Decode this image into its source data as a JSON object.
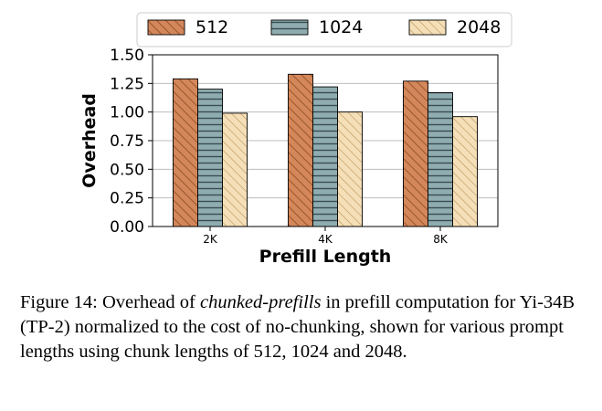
{
  "chart_data": {
    "type": "bar",
    "categories": [
      "2K",
      "4K",
      "8K"
    ],
    "series": [
      {
        "name": "512",
        "values": [
          1.29,
          1.33,
          1.27
        ],
        "color": "#d4875a",
        "hatch": "diagonal"
      },
      {
        "name": "1024",
        "values": [
          1.2,
          1.22,
          1.17
        ],
        "color": "#8fadb0",
        "hatch": "horizontal"
      },
      {
        "name": "2048",
        "values": [
          0.99,
          1.0,
          0.96
        ],
        "color": "#f5dfb8",
        "hatch": "diagonal-light"
      }
    ],
    "xlabel": "Prefill Length",
    "ylabel": "Overhead",
    "ylim": [
      0,
      1.5
    ],
    "yticks": [
      "0.00",
      "0.25",
      "0.50",
      "0.75",
      "1.00",
      "1.25",
      "1.50"
    ],
    "grid": "horizontal",
    "legend": "top"
  },
  "caption": {
    "prefix": "Figure 14: Overhead of ",
    "emphasis": "chunked-prefills",
    "suffix": " in prefill computation for Yi-34B (TP-2) normalized to the cost of no-chunking, shown for various prompt lengths using chunk lengths of 512, 1024 and 2048."
  }
}
